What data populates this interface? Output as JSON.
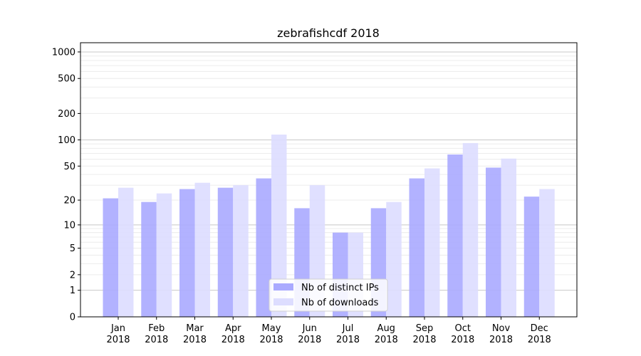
{
  "chart_data": {
    "type": "bar",
    "title": "zebrafishcdf 2018",
    "xlabel": "",
    "ylabel": "",
    "yscale": "log(1+x)",
    "ylim": [
      0,
      1200
    ],
    "yticks": [
      0,
      1,
      2,
      5,
      10,
      20,
      50,
      100,
      200,
      500,
      1000
    ],
    "grid": true,
    "legend_position": "bottom-center",
    "categories": [
      "Jan\n2018",
      "Feb\n2018",
      "Mar\n2018",
      "Apr\n2018",
      "May\n2018",
      "Jun\n2018",
      "Jul\n2018",
      "Aug\n2018",
      "Sep\n2018",
      "Oct\n2018",
      "Nov\n2018",
      "Dec\n2018"
    ],
    "series": [
      {
        "name": "Nb of distinct IPs",
        "color": "#aaaaff",
        "values": [
          21,
          19,
          27,
          28,
          36,
          16,
          8,
          16,
          36,
          68,
          48,
          22
        ]
      },
      {
        "name": "Nb of downloads",
        "color": "#ddddff",
        "values": [
          28,
          24,
          32,
          30,
          115,
          30,
          8,
          19,
          47,
          92,
          61,
          27
        ]
      }
    ]
  }
}
